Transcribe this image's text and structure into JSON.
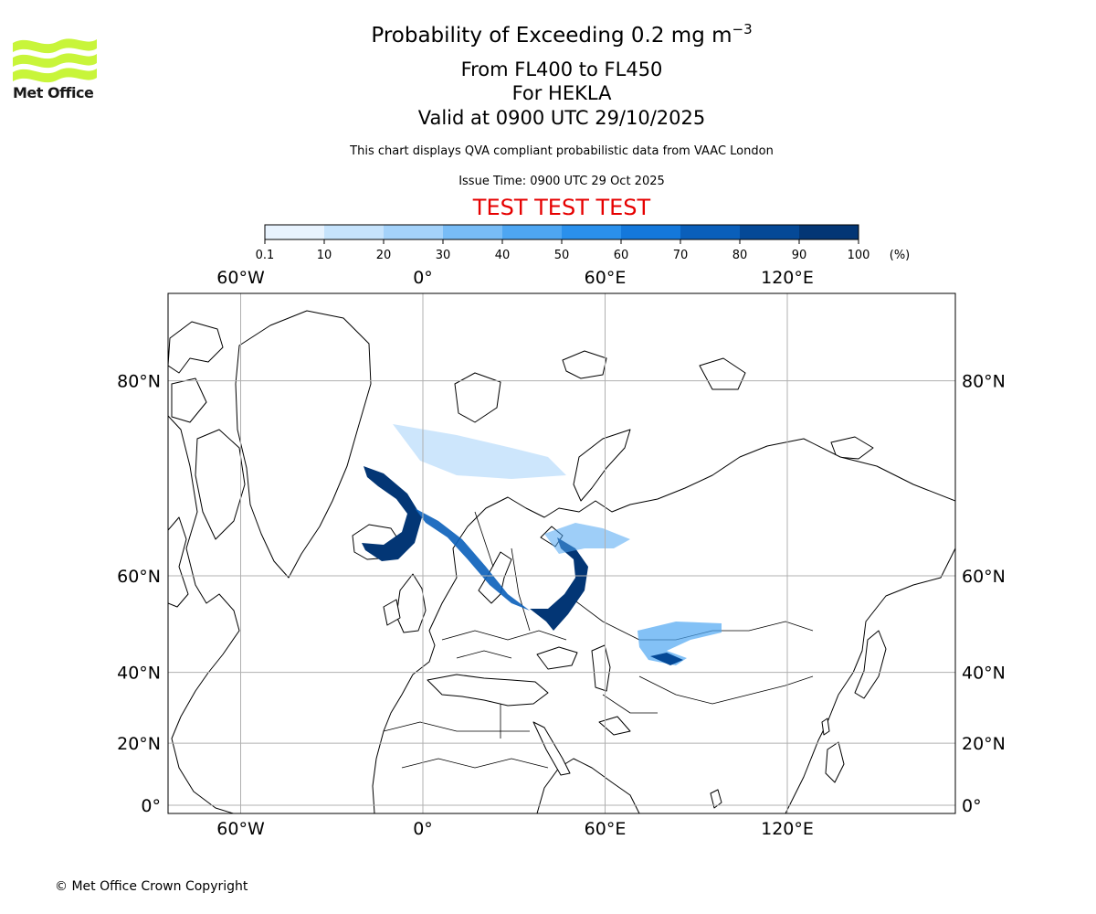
{
  "branding": {
    "logo_text": "Met Office",
    "logo_icon": "met-office-waves-logo",
    "logo_color": "#c8f53a"
  },
  "title": {
    "line1": "Probability of Exceeding 0.2 mg m",
    "line1_exponent": "−3",
    "line2": "From FL400 to FL450",
    "line3": "For HEKLA",
    "line4": "Valid at 0900 UTC 29/10/2025"
  },
  "subtitle": "This chart displays QVA compliant probabilistic data from VAAC London",
  "issue_time": "Issue Time: 0900 UTC 29 Oct 2025",
  "test_banner": "TEST TEST TEST",
  "colorbar": {
    "ticks": [
      "0.1",
      "10",
      "20",
      "30",
      "40",
      "50",
      "60",
      "70",
      "80",
      "90",
      "100"
    ],
    "unit": "(%)",
    "colors": [
      "#e8f3fe",
      "#c6e3fc",
      "#a4d2fa",
      "#78bcf6",
      "#4ea6f2",
      "#2a90ec",
      "#1478db",
      "#0a5fba",
      "#054997",
      "#033675"
    ]
  },
  "map": {
    "lon_labels": [
      "60°W",
      "0°",
      "60°E",
      "120°E"
    ],
    "lat_labels": [
      "80°N",
      "60°N",
      "40°N",
      "20°N",
      "0°"
    ],
    "lon_ticks": [
      -60,
      0,
      60,
      120
    ],
    "lat_ticks": [
      80,
      60,
      40,
      20,
      0
    ],
    "grid": true,
    "land_color": "#ffffff",
    "coast_color": "#000000",
    "plume_color": "#033675"
  },
  "copyright": "© Met Office Crown Copyright"
}
